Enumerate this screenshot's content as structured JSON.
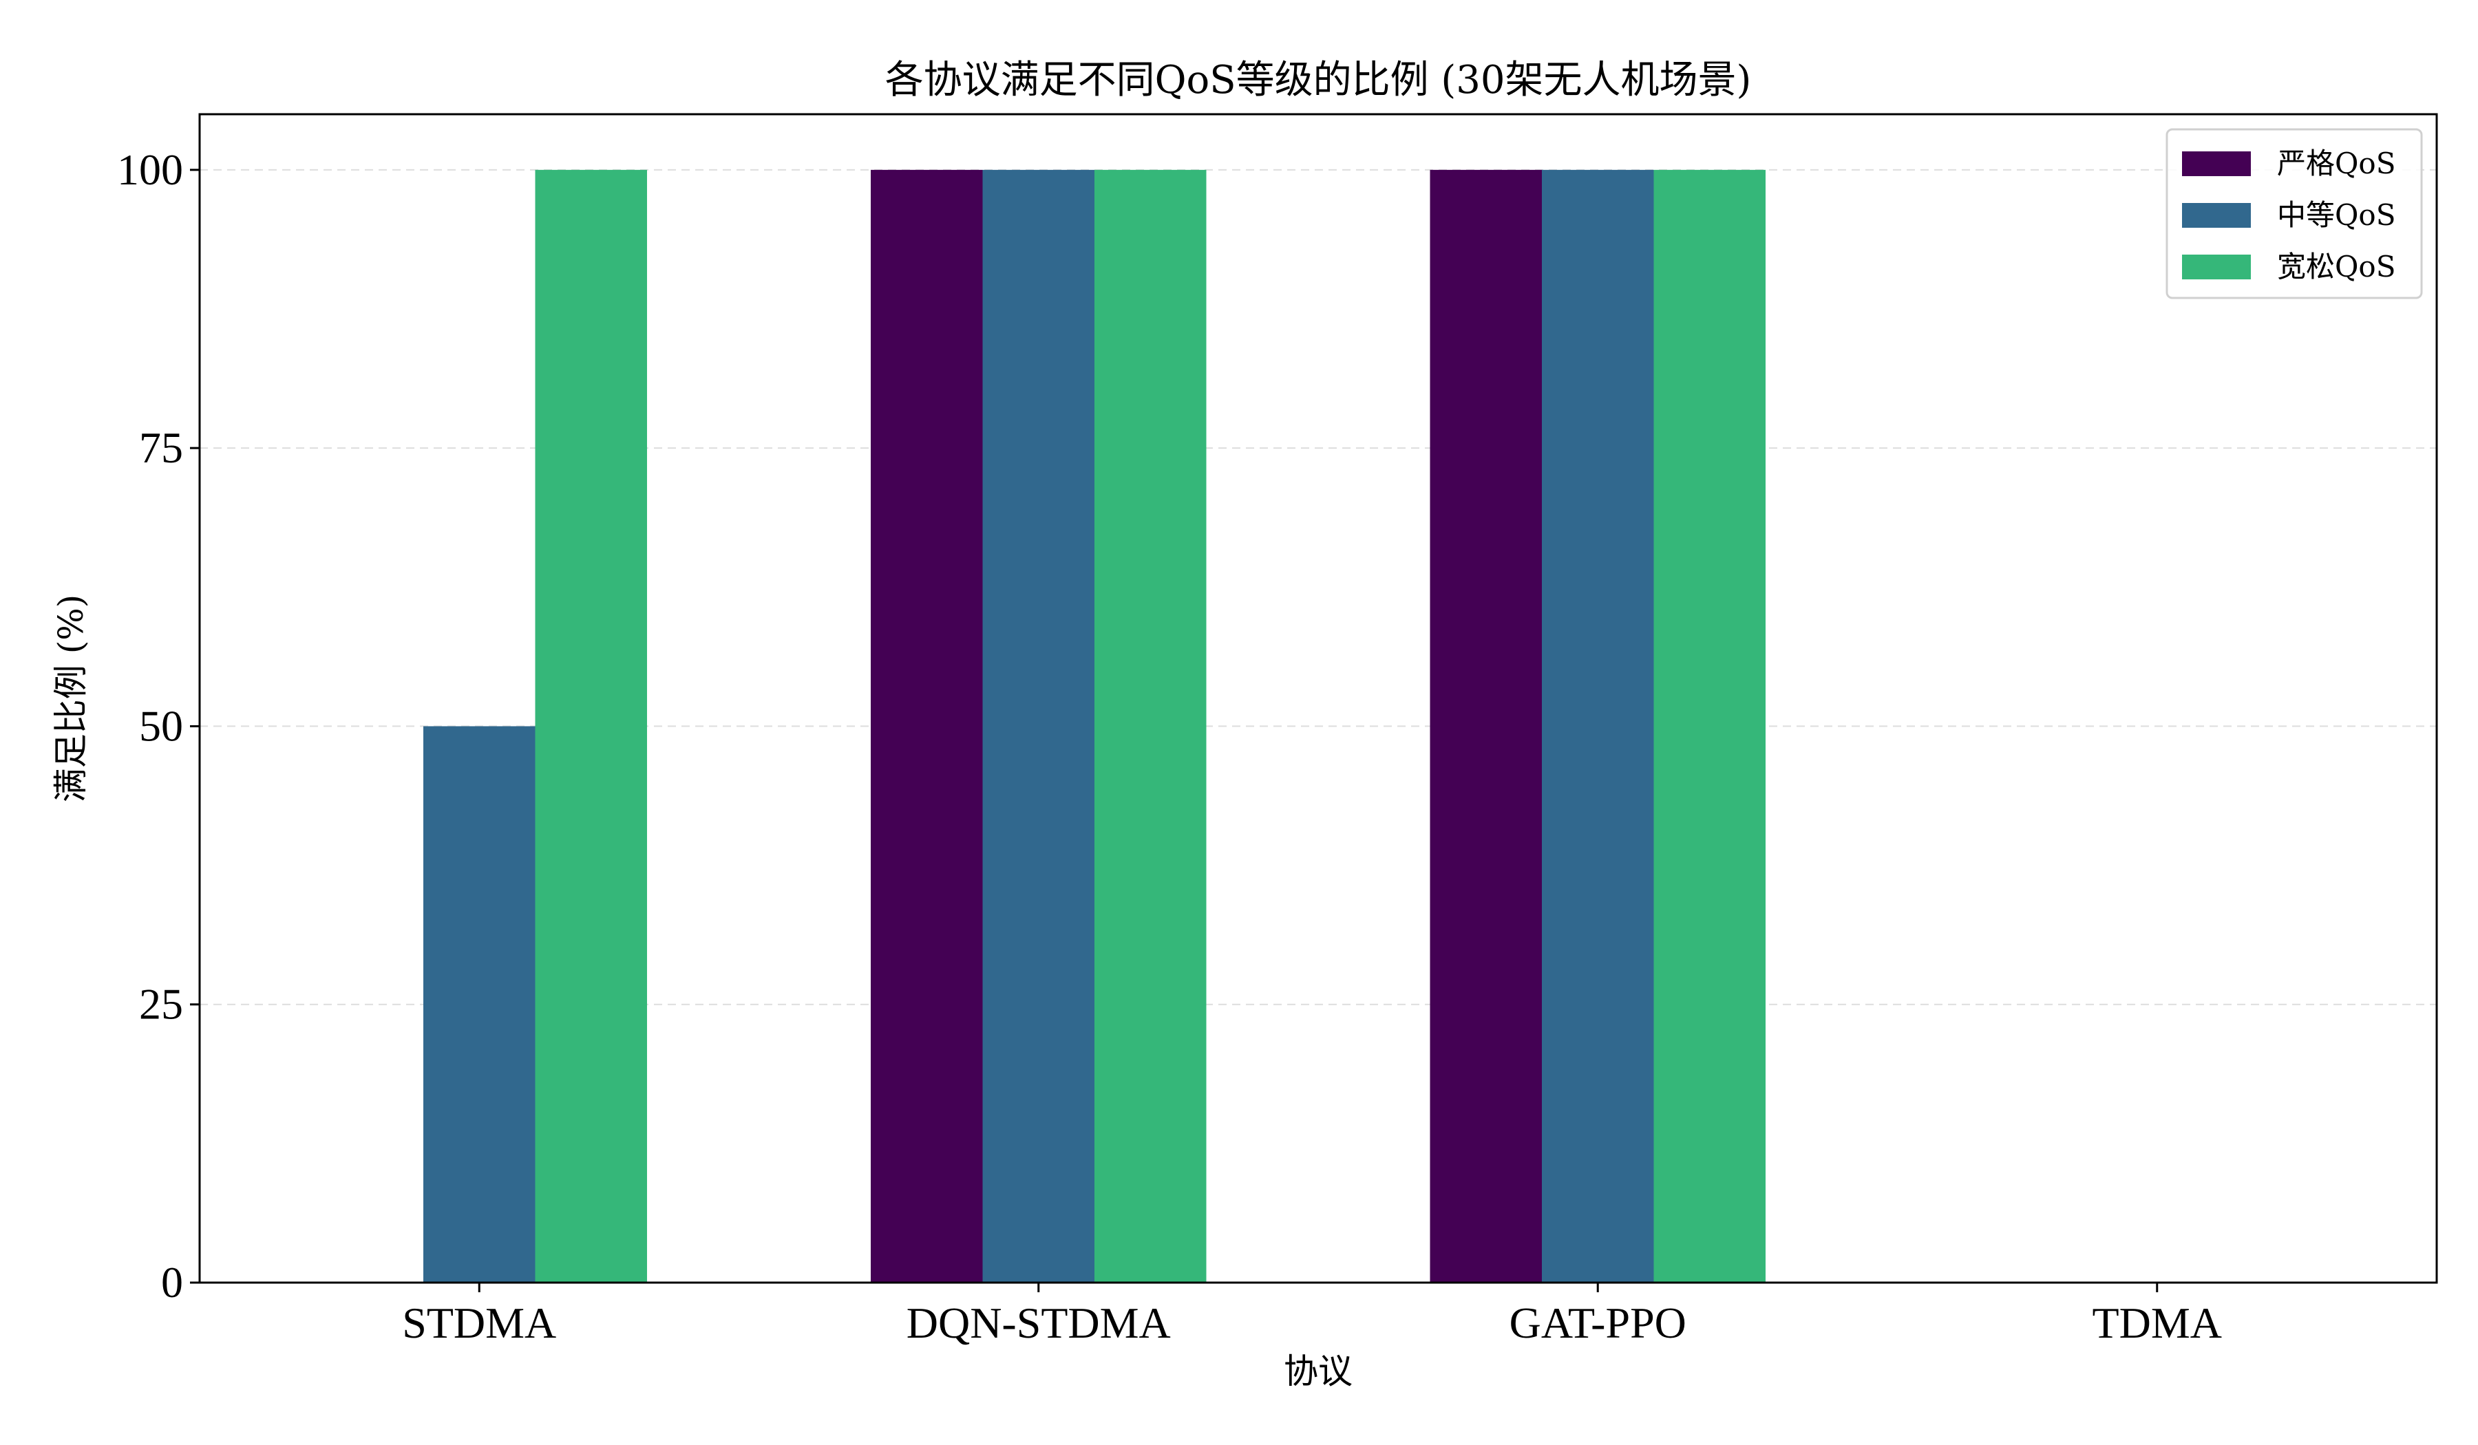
{
  "chart_data": {
    "type": "bar",
    "title": "各协议满足不同QoS等级的比例 (30架无人机场景)",
    "xlabel": "协议",
    "ylabel": "满足比例 (%)",
    "categories": [
      "STDMA",
      "DQN-STDMA",
      "GAT-PPO",
      "TDMA"
    ],
    "ylim": [
      0,
      105
    ],
    "yticks": [
      0,
      25,
      50,
      75,
      100
    ],
    "grid": "y-dashed",
    "legend_position": "top-right",
    "series": [
      {
        "name": "严格QoS",
        "color": "#440154",
        "values": [
          0,
          100,
          100,
          0
        ]
      },
      {
        "name": "中等QoS",
        "color": "#31688e",
        "values": [
          50,
          100,
          100,
          0
        ]
      },
      {
        "name": "宽松QoS",
        "color": "#35b779",
        "values": [
          100,
          100,
          100,
          0
        ]
      }
    ]
  }
}
